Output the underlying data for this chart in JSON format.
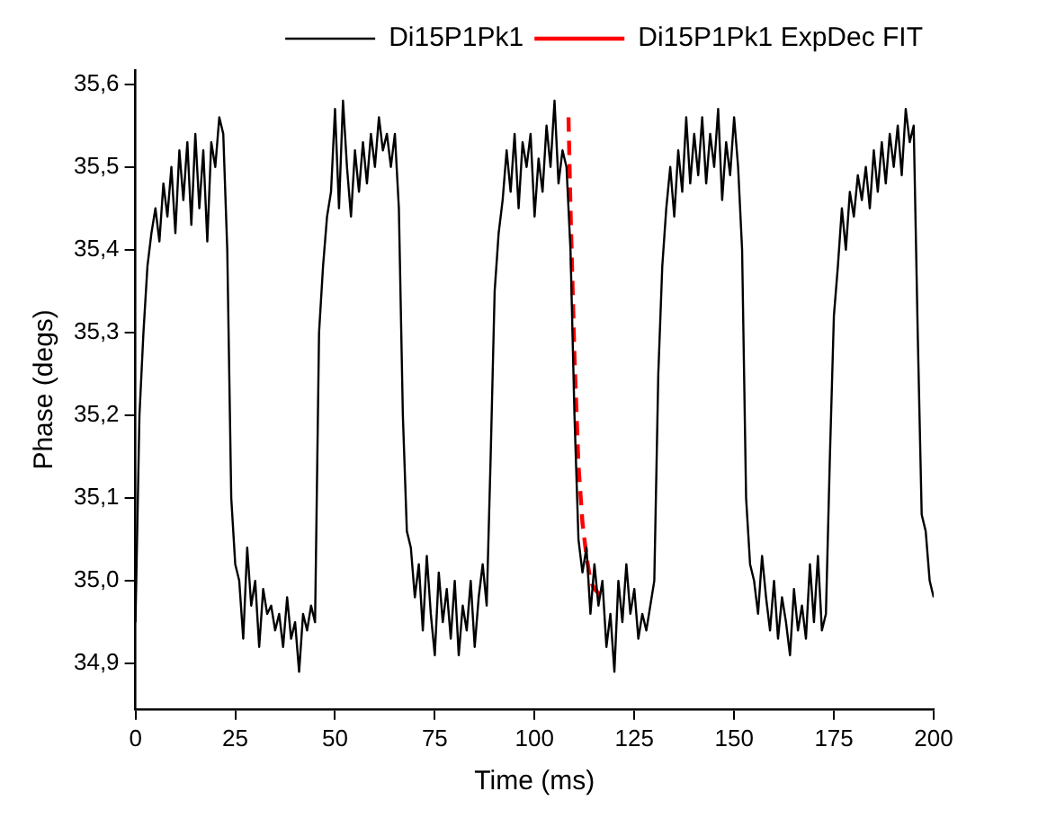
{
  "chart_data": {
    "type": "line",
    "xlabel": "Time (ms)",
    "ylabel": "Phase (degs)",
    "xlim": [
      0,
      200
    ],
    "xticks": [
      0,
      25,
      50,
      75,
      100,
      125,
      150,
      175,
      200
    ],
    "ylim": [
      34.845,
      35.617
    ],
    "yticks": [
      {
        "value": 34.9,
        "label": "34,9"
      },
      {
        "value": 35.0,
        "label": "35,0"
      },
      {
        "value": 35.1,
        "label": "35,1"
      },
      {
        "value": 35.2,
        "label": "35,2"
      },
      {
        "value": 35.3,
        "label": "35,3"
      },
      {
        "value": 35.4,
        "label": "35,4"
      },
      {
        "value": 35.5,
        "label": "35,5"
      },
      {
        "value": 35.6,
        "label": "35,6"
      }
    ],
    "grid": false,
    "legend": "top right",
    "marker": "none",
    "series": [
      {
        "name": "Di15P1Pk1",
        "color": "#000000",
        "line_style": "solid",
        "x": [
          0,
          1,
          2,
          3,
          4,
          5,
          6,
          7,
          8,
          9,
          10,
          11,
          12,
          13,
          14,
          15,
          16,
          17,
          18,
          19,
          20,
          21,
          22,
          23,
          24,
          25,
          26,
          27,
          28,
          29,
          30,
          31,
          32,
          33,
          34,
          35,
          36,
          37,
          38,
          39,
          40,
          41,
          42,
          43,
          44,
          45,
          46,
          47,
          48,
          49,
          50,
          51,
          52,
          53,
          54,
          55,
          56,
          57,
          58,
          59,
          60,
          61,
          62,
          63,
          64,
          65,
          66,
          67,
          68,
          69,
          70,
          71,
          72,
          73,
          74,
          75,
          76,
          77,
          78,
          79,
          80,
          81,
          82,
          83,
          84,
          85,
          86,
          87,
          88,
          89,
          90,
          91,
          92,
          93,
          94,
          95,
          96,
          97,
          98,
          99,
          100,
          101,
          102,
          103,
          104,
          105,
          106,
          107,
          108,
          109,
          110,
          111,
          112,
          113,
          114,
          115,
          116,
          117,
          118,
          119,
          120,
          121,
          122,
          123,
          124,
          125,
          126,
          127,
          128,
          129,
          130,
          131,
          132,
          133,
          134,
          135,
          136,
          137,
          138,
          139,
          140,
          141,
          142,
          143,
          144,
          145,
          146,
          147,
          148,
          149,
          150,
          151,
          152,
          153,
          154,
          155,
          156,
          157,
          158,
          159,
          160,
          161,
          162,
          163,
          164,
          165,
          166,
          167,
          168,
          169,
          170,
          171,
          172,
          173,
          174,
          175,
          176,
          177,
          178,
          179,
          180,
          181,
          182,
          183,
          184,
          185,
          186,
          187,
          188,
          189,
          190,
          191,
          192,
          193,
          194,
          195,
          196,
          197,
          198,
          199,
          200
        ],
        "values": [
          34.95,
          35.2,
          35.3,
          35.38,
          35.42,
          35.45,
          35.41,
          35.48,
          35.44,
          35.5,
          35.42,
          35.52,
          35.46,
          35.53,
          35.43,
          35.54,
          35.45,
          35.52,
          35.41,
          35.53,
          35.5,
          35.56,
          35.54,
          35.4,
          35.1,
          35.02,
          35.0,
          34.93,
          35.04,
          34.97,
          35.0,
          34.92,
          34.99,
          34.96,
          34.97,
          34.94,
          34.96,
          34.92,
          34.98,
          34.93,
          34.95,
          34.89,
          34.96,
          34.94,
          34.97,
          34.95,
          35.3,
          35.38,
          35.44,
          35.47,
          35.57,
          35.45,
          35.58,
          35.5,
          35.44,
          35.52,
          35.47,
          35.53,
          35.48,
          35.54,
          35.5,
          35.56,
          35.52,
          35.54,
          35.5,
          35.54,
          35.45,
          35.2,
          35.06,
          35.04,
          34.98,
          35.02,
          34.94,
          35.03,
          34.96,
          34.91,
          35.01,
          34.95,
          34.99,
          34.93,
          35.0,
          34.91,
          34.97,
          34.94,
          35.0,
          34.92,
          34.98,
          35.02,
          34.97,
          35.15,
          35.35,
          35.42,
          35.46,
          35.52,
          35.47,
          35.54,
          35.45,
          35.53,
          35.5,
          35.54,
          35.44,
          35.51,
          35.47,
          35.55,
          35.5,
          35.58,
          35.48,
          35.52,
          35.5,
          35.4,
          35.2,
          35.05,
          35.01,
          35.04,
          34.96,
          35.02,
          34.97,
          35.0,
          34.92,
          34.96,
          34.89,
          35.0,
          34.95,
          35.02,
          34.96,
          34.99,
          34.93,
          34.96,
          34.94,
          34.97,
          35.0,
          35.25,
          35.38,
          35.45,
          35.5,
          35.44,
          35.52,
          35.47,
          35.56,
          35.48,
          35.54,
          35.49,
          35.56,
          35.48,
          35.54,
          35.5,
          35.57,
          35.46,
          35.53,
          35.49,
          35.56,
          35.5,
          35.4,
          35.1,
          35.02,
          35.0,
          34.96,
          35.03,
          34.98,
          34.94,
          35.0,
          34.93,
          34.98,
          34.95,
          34.91,
          34.99,
          34.94,
          34.97,
          34.93,
          35.02,
          34.95,
          35.03,
          34.94,
          34.96,
          35.15,
          35.32,
          35.38,
          35.45,
          35.4,
          35.47,
          35.44,
          35.49,
          35.46,
          35.5,
          35.45,
          35.52,
          35.47,
          35.53,
          35.48,
          35.54,
          35.5,
          35.55,
          35.49,
          35.57,
          35.53,
          35.55,
          35.3,
          35.08,
          35.06,
          35.0,
          34.98
        ]
      },
      {
        "name": "Di15P1Pk1 ExpDec FIT",
        "color": "#ff0000",
        "line_style": "dashed",
        "x": [
          108.5,
          109,
          110,
          111,
          112,
          113,
          114,
          115,
          116,
          117
        ],
        "values": [
          35.56,
          35.45,
          35.27,
          35.14,
          35.07,
          35.03,
          35.0,
          34.99,
          34.985,
          34.98
        ]
      }
    ]
  }
}
